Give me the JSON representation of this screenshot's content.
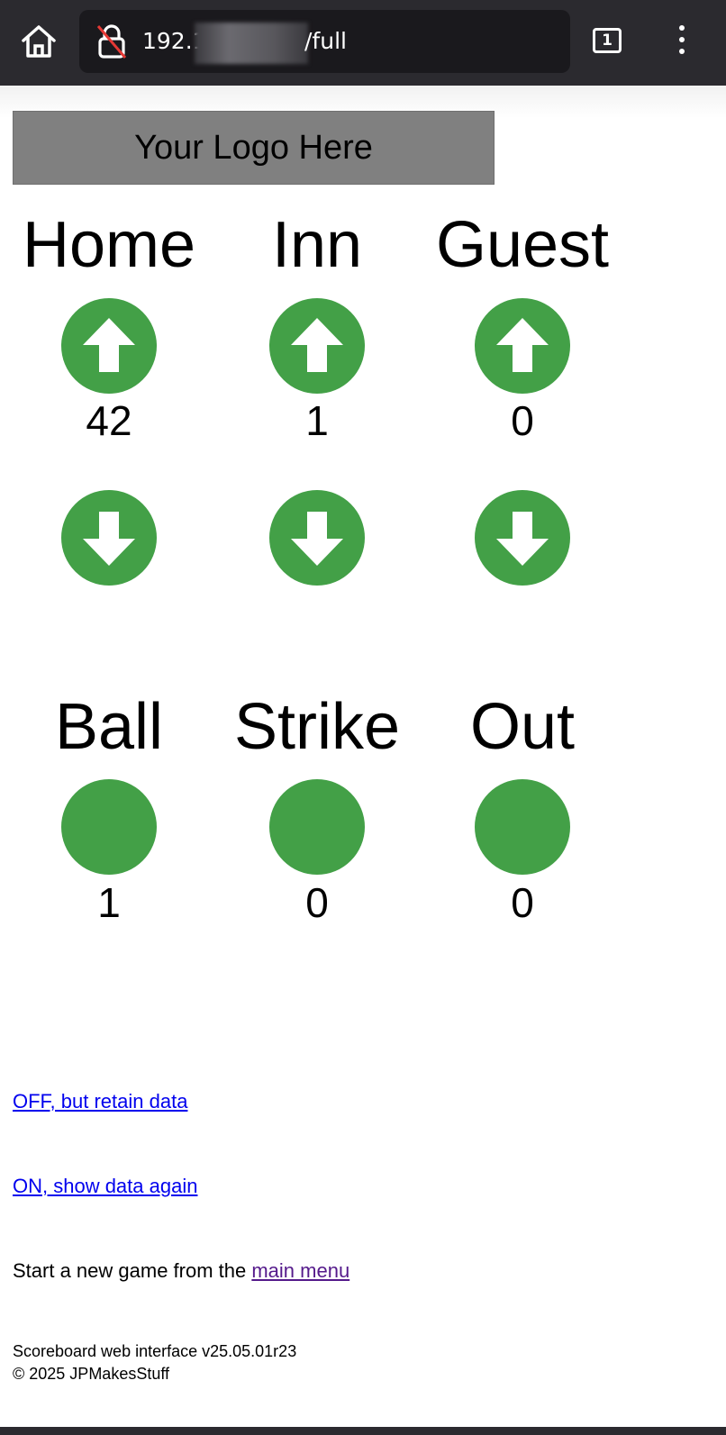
{
  "browser": {
    "url_start": "192.1",
    "url_end": "/full",
    "tab_count": "1"
  },
  "logo": {
    "text": "Your Logo Here"
  },
  "score": {
    "home": {
      "label": "Home",
      "value": "42"
    },
    "inning": {
      "label": "Inn",
      "value": "1"
    },
    "guest": {
      "label": "Guest",
      "value": "0"
    }
  },
  "count": {
    "ball": {
      "label": "Ball",
      "value": "1"
    },
    "strike": {
      "label": "Strike",
      "value": "0"
    },
    "out": {
      "label": "Out",
      "value": "0"
    }
  },
  "links": {
    "off": "OFF, but retain data",
    "on": "ON, show data again",
    "newgame_prefix": "Start a new game from the ",
    "main_menu": "main menu"
  },
  "footer": {
    "version": "Scoreboard web interface v25.05.01r23",
    "copyright": "© 2025 JPMakesStuff"
  },
  "colors": {
    "button": "#43a047",
    "link": "#0000ee",
    "visited": "#551a8b"
  }
}
